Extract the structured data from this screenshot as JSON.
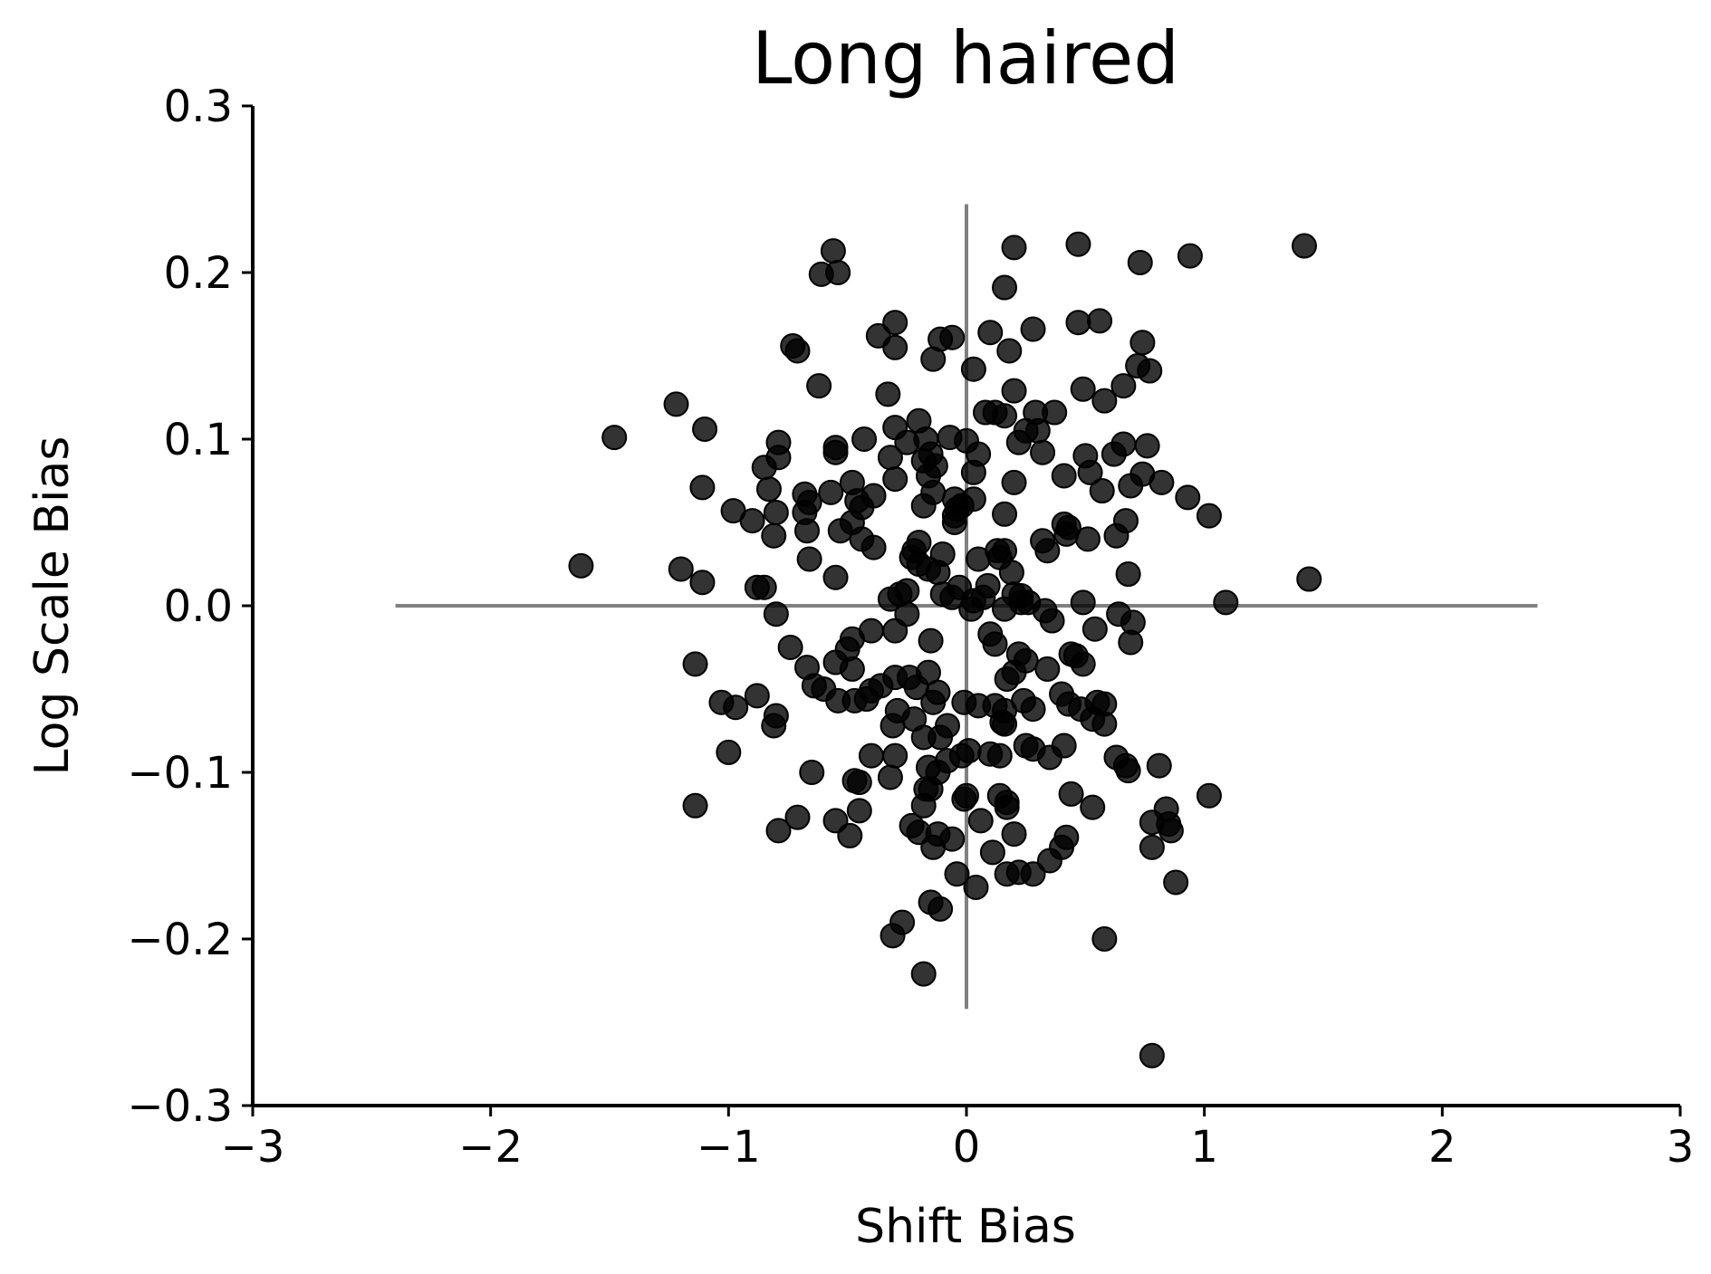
{
  "chart_data": {
    "type": "scatter",
    "title": "Long haired",
    "xlabel": "Shift Bias",
    "ylabel": "Log Scale Bias",
    "xlim": [
      -3,
      3
    ],
    "ylim": [
      -0.3,
      0.3
    ],
    "xticks": [
      "−3",
      "−2",
      "−1",
      "0",
      "1",
      "2",
      "3"
    ],
    "xtick_values": [
      -3,
      -2,
      -1,
      0,
      1,
      2,
      3
    ],
    "yticks": [
      "−0.3",
      "−0.2",
      "−0.1",
      "0.0",
      "0.1",
      "0.2",
      "0.3"
    ],
    "ytick_values": [
      -0.3,
      -0.2,
      -0.1,
      0.0,
      0.1,
      0.2,
      0.3
    ],
    "grid": false,
    "marker_color": "#000000",
    "reference_line_color": "#808080",
    "reference_lines": {
      "horizontal": {
        "y": 0.0,
        "x_from": -2.4,
        "x_to": 2.4
      },
      "vertical": {
        "x": 0.0,
        "y_from": -0.242,
        "y_to": 0.241
      }
    },
    "points": [
      [
        -0.56,
        0.213
      ],
      [
        -0.61,
        0.199
      ],
      [
        -0.54,
        0.2
      ],
      [
        0.2,
        0.215
      ],
      [
        0.47,
        0.217
      ],
      [
        0.73,
        0.206
      ],
      [
        0.94,
        0.21
      ],
      [
        1.42,
        0.216
      ],
      [
        0.16,
        0.191
      ],
      [
        -0.37,
        0.162
      ],
      [
        -0.3,
        0.17
      ],
      [
        -0.3,
        0.155
      ],
      [
        -0.11,
        0.16
      ],
      [
        -0.06,
        0.161
      ],
      [
        -0.14,
        0.148
      ],
      [
        0.1,
        0.164
      ],
      [
        0.28,
        0.166
      ],
      [
        0.47,
        0.17
      ],
      [
        0.56,
        0.171
      ],
      [
        0.74,
        0.158
      ],
      [
        -0.73,
        0.156
      ],
      [
        -0.71,
        0.153
      ],
      [
        0.18,
        0.153
      ],
      [
        0.03,
        0.142
      ],
      [
        0.72,
        0.144
      ],
      [
        0.77,
        0.141
      ],
      [
        -0.62,
        0.132
      ],
      [
        -0.33,
        0.127
      ],
      [
        0.2,
        0.129
      ],
      [
        0.49,
        0.13
      ],
      [
        0.66,
        0.132
      ],
      [
        0.58,
        0.123
      ],
      [
        -1.22,
        0.121
      ],
      [
        -1.1,
        0.106
      ],
      [
        -1.48,
        0.101
      ],
      [
        -0.79,
        0.098
      ],
      [
        -0.2,
        0.111
      ],
      [
        -0.3,
        0.107
      ],
      [
        0.08,
        0.116
      ],
      [
        0.12,
        0.116
      ],
      [
        0.16,
        0.114
      ],
      [
        0.29,
        0.116
      ],
      [
        0.37,
        0.116
      ],
      [
        0.25,
        0.105
      ],
      [
        0.3,
        0.105
      ],
      [
        -0.43,
        0.1
      ],
      [
        -0.25,
        0.098
      ],
      [
        -0.17,
        0.1
      ],
      [
        -0.07,
        0.101
      ],
      [
        0.0,
        0.099
      ],
      [
        0.22,
        0.098
      ],
      [
        0.32,
        0.092
      ],
      [
        0.5,
        0.09
      ],
      [
        0.62,
        0.091
      ],
      [
        0.66,
        0.097
      ],
      [
        0.76,
        0.096
      ],
      [
        -0.55,
        0.095
      ],
      [
        -0.55,
        0.092
      ],
      [
        -0.79,
        0.089
      ],
      [
        -0.32,
        0.089
      ],
      [
        -0.15,
        0.091
      ],
      [
        -0.18,
        0.087
      ],
      [
        -0.13,
        0.084
      ],
      [
        0.05,
        0.091
      ],
      [
        -0.85,
        0.083
      ],
      [
        -0.16,
        0.078
      ],
      [
        0.03,
        0.08
      ],
      [
        0.41,
        0.078
      ],
      [
        0.52,
        0.08
      ],
      [
        0.69,
        0.072
      ],
      [
        0.74,
        0.079
      ],
      [
        0.82,
        0.074
      ],
      [
        -1.11,
        0.071
      ],
      [
        -0.83,
        0.07
      ],
      [
        -0.68,
        0.067
      ],
      [
        -0.57,
        0.068
      ],
      [
        -0.48,
        0.074
      ],
      [
        -0.3,
        0.076
      ],
      [
        -0.39,
        0.066
      ],
      [
        0.2,
        0.074
      ],
      [
        0.57,
        0.069
      ],
      [
        -0.98,
        0.057
      ],
      [
        -0.9,
        0.051
      ],
      [
        -0.8,
        0.056
      ],
      [
        -0.66,
        0.062
      ],
      [
        -0.68,
        0.056
      ],
      [
        -0.46,
        0.063
      ],
      [
        -0.44,
        0.059
      ],
      [
        -0.14,
        0.068
      ],
      [
        -0.05,
        0.064
      ],
      [
        0.03,
        0.064
      ],
      [
        -0.04,
        0.058
      ],
      [
        -0.18,
        0.06
      ],
      [
        0.93,
        0.065
      ],
      [
        1.02,
        0.054
      ],
      [
        -0.02,
        0.06
      ],
      [
        -0.05,
        0.054
      ],
      [
        -0.48,
        0.05
      ],
      [
        -0.53,
        0.045
      ],
      [
        -0.67,
        0.045
      ],
      [
        -0.81,
        0.042
      ],
      [
        -0.44,
        0.04
      ],
      [
        -0.39,
        0.035
      ],
      [
        -0.05,
        0.05
      ],
      [
        0.16,
        0.055
      ],
      [
        0.41,
        0.049
      ],
      [
        0.43,
        0.047
      ],
      [
        0.42,
        0.043
      ],
      [
        0.51,
        0.04
      ],
      [
        0.63,
        0.042
      ],
      [
        0.67,
        0.051
      ],
      [
        0.32,
        0.039
      ],
      [
        0.34,
        0.033
      ],
      [
        -0.2,
        0.038
      ],
      [
        -0.22,
        0.033
      ],
      [
        -0.23,
        0.029
      ],
      [
        -0.2,
        0.025
      ],
      [
        -0.1,
        0.031
      ],
      [
        0.13,
        0.033
      ],
      [
        0.14,
        0.029
      ],
      [
        0.16,
        0.033
      ],
      [
        0.05,
        0.028
      ],
      [
        -0.16,
        0.022
      ],
      [
        -0.12,
        0.02
      ],
      [
        -1.2,
        0.022
      ],
      [
        -1.11,
        0.014
      ],
      [
        -1.62,
        0.024
      ],
      [
        -0.66,
        0.028
      ],
      [
        -0.55,
        0.017
      ],
      [
        0.19,
        0.02
      ],
      [
        0.68,
        0.019
      ],
      [
        1.44,
        0.016
      ],
      [
        -0.88,
        0.011
      ],
      [
        -0.85,
        0.011
      ],
      [
        -0.32,
        0.004
      ],
      [
        -0.28,
        0.007
      ],
      [
        -0.25,
        0.009
      ],
      [
        -0.1,
        0.007
      ],
      [
        -0.06,
        0.005
      ],
      [
        -0.03,
        0.011
      ],
      [
        0.03,
        0.003
      ],
      [
        0.07,
        0.005
      ],
      [
        0.02,
        -0.002
      ],
      [
        0.09,
        0.012
      ],
      [
        0.2,
        0.007
      ],
      [
        0.23,
        0.006
      ],
      [
        0.23,
        0.002
      ],
      [
        0.26,
        0.002
      ],
      [
        0.16,
        -0.002
      ],
      [
        0.33,
        -0.003
      ],
      [
        0.49,
        0.002
      ],
      [
        0.36,
        -0.009
      ],
      [
        0.54,
        -0.014
      ],
      [
        0.64,
        -0.005
      ],
      [
        0.7,
        -0.01
      ],
      [
        -0.8,
        -0.005
      ],
      [
        1.09,
        0.002
      ],
      [
        -0.25,
        -0.005
      ],
      [
        -0.3,
        -0.015
      ],
      [
        -0.4,
        -0.015
      ],
      [
        -0.48,
        -0.02
      ],
      [
        -0.5,
        -0.026
      ],
      [
        -0.74,
        -0.025
      ],
      [
        -0.15,
        -0.021
      ],
      [
        0.1,
        -0.017
      ],
      [
        0.12,
        -0.023
      ],
      [
        0.22,
        -0.029
      ],
      [
        0.25,
        -0.033
      ],
      [
        0.44,
        -0.029
      ],
      [
        0.46,
        -0.03
      ],
      [
        0.49,
        -0.035
      ],
      [
        0.69,
        -0.022
      ],
      [
        -1.14,
        -0.035
      ],
      [
        -0.67,
        -0.037
      ],
      [
        -0.55,
        -0.034
      ],
      [
        -0.48,
        -0.038
      ],
      [
        -0.3,
        -0.043
      ],
      [
        -0.24,
        -0.043
      ],
      [
        -0.4,
        -0.051
      ],
      [
        -0.36,
        -0.048
      ],
      [
        -0.16,
        -0.04
      ],
      [
        0.17,
        -0.044
      ],
      [
        0.2,
        -0.04
      ],
      [
        0.34,
        -0.038
      ],
      [
        0.4,
        -0.053
      ],
      [
        -0.64,
        -0.048
      ],
      [
        -0.6,
        -0.05
      ],
      [
        -0.54,
        -0.057
      ],
      [
        -0.47,
        -0.057
      ],
      [
        -0.42,
        -0.056
      ],
      [
        -1.03,
        -0.058
      ],
      [
        -0.97,
        -0.061
      ],
      [
        -0.88,
        -0.054
      ],
      [
        -0.21,
        -0.049
      ],
      [
        -0.12,
        -0.052
      ],
      [
        -0.14,
        -0.058
      ],
      [
        -0.29,
        -0.063
      ],
      [
        -0.31,
        -0.072
      ],
      [
        -0.22,
        -0.068
      ],
      [
        -0.01,
        -0.058
      ],
      [
        0.05,
        -0.06
      ],
      [
        0.12,
        -0.06
      ],
      [
        0.16,
        -0.063
      ],
      [
        0.24,
        -0.057
      ],
      [
        0.28,
        -0.062
      ],
      [
        0.43,
        -0.059
      ],
      [
        0.48,
        -0.062
      ],
      [
        0.55,
        -0.058
      ],
      [
        0.58,
        -0.059
      ],
      [
        0.53,
        -0.068
      ],
      [
        0.58,
        -0.071
      ],
      [
        0.15,
        -0.07
      ],
      [
        0.16,
        -0.071
      ],
      [
        -0.8,
        -0.066
      ],
      [
        -0.81,
        -0.072
      ],
      [
        -0.18,
        -0.079
      ],
      [
        -0.11,
        -0.079
      ],
      [
        -0.08,
        -0.072
      ],
      [
        0.25,
        -0.084
      ],
      [
        0.28,
        -0.086
      ],
      [
        0.35,
        -0.091
      ],
      [
        0.41,
        -0.084
      ],
      [
        0.63,
        -0.091
      ],
      [
        0.67,
        -0.096
      ],
      [
        0.68,
        -0.099
      ],
      [
        0.81,
        -0.096
      ],
      [
        -1.0,
        -0.088
      ],
      [
        -0.4,
        -0.09
      ],
      [
        -0.3,
        -0.09
      ],
      [
        -0.16,
        -0.097
      ],
      [
        -0.12,
        -0.1
      ],
      [
        -0.08,
        -0.093
      ],
      [
        -0.02,
        -0.09
      ],
      [
        0.01,
        -0.087
      ],
      [
        0.1,
        -0.089
      ],
      [
        0.14,
        -0.09
      ],
      [
        -0.65,
        -0.1
      ],
      [
        -0.47,
        -0.105
      ],
      [
        -0.45,
        -0.106
      ],
      [
        -0.32,
        -0.103
      ],
      [
        -0.17,
        -0.11
      ],
      [
        -0.15,
        -0.11
      ],
      [
        -0.01,
        -0.116
      ],
      [
        0.0,
        -0.114
      ],
      [
        0.14,
        -0.114
      ],
      [
        0.17,
        -0.118
      ],
      [
        0.17,
        -0.121
      ],
      [
        0.44,
        -0.113
      ],
      [
        1.02,
        -0.114
      ],
      [
        -1.14,
        -0.12
      ],
      [
        -0.45,
        -0.123
      ],
      [
        -0.18,
        -0.12
      ],
      [
        0.53,
        -0.121
      ],
      [
        0.84,
        -0.122
      ],
      [
        -0.71,
        -0.127
      ],
      [
        -0.55,
        -0.129
      ],
      [
        -0.23,
        -0.132
      ],
      [
        -0.2,
        -0.136
      ],
      [
        0.06,
        -0.129
      ],
      [
        0.2,
        -0.137
      ],
      [
        0.78,
        -0.13
      ],
      [
        0.85,
        -0.131
      ],
      [
        0.86,
        -0.135
      ],
      [
        -0.79,
        -0.135
      ],
      [
        -0.49,
        -0.138
      ],
      [
        -0.12,
        -0.137
      ],
      [
        -0.06,
        -0.14
      ],
      [
        -0.14,
        -0.145
      ],
      [
        0.11,
        -0.148
      ],
      [
        0.4,
        -0.145
      ],
      [
        0.42,
        -0.139
      ],
      [
        0.78,
        -0.145
      ],
      [
        -0.04,
        -0.161
      ],
      [
        0.17,
        -0.161
      ],
      [
        0.22,
        -0.16
      ],
      [
        0.28,
        -0.161
      ],
      [
        0.35,
        -0.153
      ],
      [
        0.88,
        -0.166
      ],
      [
        -0.15,
        -0.178
      ],
      [
        -0.11,
        -0.182
      ],
      [
        0.04,
        -0.169
      ],
      [
        -0.27,
        -0.19
      ],
      [
        -0.31,
        -0.198
      ],
      [
        0.58,
        -0.2
      ],
      [
        -0.18,
        -0.221
      ],
      [
        0.78,
        -0.27
      ]
    ]
  }
}
